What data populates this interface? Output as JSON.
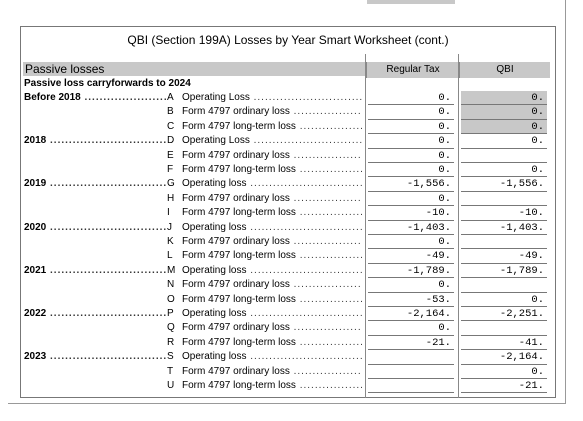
{
  "header": {
    "title": "QBI (Section 199A) Losses by Year Smart Worksheet (cont.)",
    "section": "Passive losses",
    "columns": [
      "Regular Tax",
      "QBI"
    ],
    "subtitle": "Passive loss carryforwards to 2024"
  },
  "rows": [
    {
      "year": "Before 2018",
      "letter": "A",
      "label": "Operating Loss",
      "regular": "0.",
      "qbi": "0."
    },
    {
      "year": null,
      "letter": "B",
      "label": "Form 4797 ordinary loss",
      "regular": "0.",
      "qbi": "0."
    },
    {
      "year": null,
      "letter": "C",
      "label": "Form 4797 long-term loss",
      "regular": "0.",
      "qbi": "0."
    },
    {
      "year": "2018",
      "letter": "D",
      "label": "Operating Loss",
      "regular": "0.",
      "qbi": "0."
    },
    {
      "year": null,
      "letter": "E",
      "label": "Form 4797 ordinary loss",
      "regular": "0.",
      "qbi": null
    },
    {
      "year": null,
      "letter": "F",
      "label": "Form 4797 long-term loss",
      "regular": "0.",
      "qbi": "0."
    },
    {
      "year": "2019",
      "letter": "G",
      "label": "Operating loss",
      "regular": "-1,556.",
      "qbi": "-1,556."
    },
    {
      "year": null,
      "letter": "H",
      "label": "Form 4797 ordinary loss",
      "regular": "0.",
      "qbi": null
    },
    {
      "year": null,
      "letter": "I",
      "label": "Form 4797 long-term loss",
      "regular": "-10.",
      "qbi": "-10."
    },
    {
      "year": "2020",
      "letter": "J",
      "label": "Operating loss",
      "regular": "-1,403.",
      "qbi": "-1,403."
    },
    {
      "year": null,
      "letter": "K",
      "label": "Form 4797 ordinary loss",
      "regular": "0.",
      "qbi": null
    },
    {
      "year": null,
      "letter": "L",
      "label": "Form 4797 long-term loss",
      "regular": "-49.",
      "qbi": "-49."
    },
    {
      "year": "2021",
      "letter": "M",
      "label": "Operating loss",
      "regular": "-1,789.",
      "qbi": "-1,789."
    },
    {
      "year": null,
      "letter": "N",
      "label": "Form 4797 ordinary loss",
      "regular": "0.",
      "qbi": null
    },
    {
      "year": null,
      "letter": "O",
      "label": "Form 4797 long-term loss",
      "regular": "-53.",
      "qbi": "0."
    },
    {
      "year": "2022",
      "letter": "P",
      "label": "Operating loss",
      "regular": "-2,164.",
      "qbi": "-2,251."
    },
    {
      "year": null,
      "letter": "Q",
      "label": "Form 4797 ordinary loss",
      "regular": "0.",
      "qbi": null
    },
    {
      "year": null,
      "letter": "R",
      "label": "Form 4797 long-term loss",
      "regular": "-21.",
      "qbi": "-41."
    },
    {
      "year": "2023",
      "letter": "S",
      "label": "Operating loss",
      "regular": null,
      "qbi": "-2,164."
    },
    {
      "year": null,
      "letter": "T",
      "label": "Form 4797 ordinary loss",
      "regular": null,
      "qbi": "0."
    },
    {
      "year": null,
      "letter": "U",
      "label": "Form 4797 long-term loss",
      "regular": null,
      "qbi": "-21."
    }
  ]
}
